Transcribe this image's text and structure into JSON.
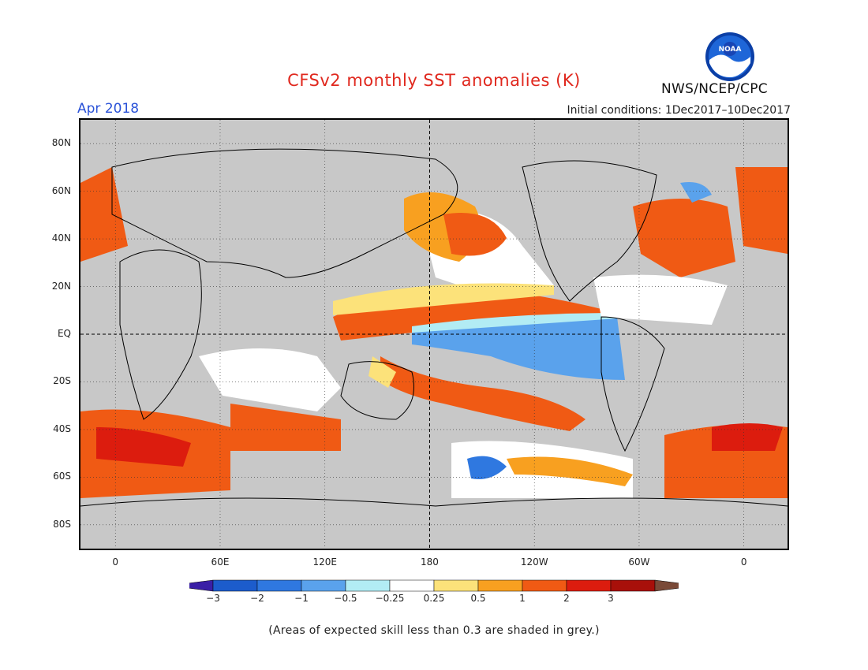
{
  "header": {
    "title": "CFSv2 monthly SST anomalies (K)",
    "month": "Apr 2018",
    "initial_conditions": "Initial conditions: 1Dec2017–10Dec2017",
    "agency": "NWS/NCEP/CPC",
    "logo_text": "NOAA"
  },
  "map": {
    "lat_labels": [
      "80N",
      "60N",
      "40N",
      "20N",
      "EQ",
      "20S",
      "40S",
      "60S",
      "80S"
    ],
    "lat_values": [
      80,
      60,
      40,
      20,
      0,
      -20,
      -40,
      -60,
      -80
    ],
    "lon_labels": [
      "0",
      "60E",
      "120E",
      "180",
      "120W",
      "60W",
      "0"
    ],
    "lon_values": [
      0,
      60,
      120,
      180,
      240,
      300,
      360
    ],
    "lat_range": [
      -90,
      90
    ],
    "lon_range": [
      -20,
      385
    ],
    "grey_color": "#c8c8c8"
  },
  "legend": {
    "ticks": [
      "−3",
      "−2",
      "−1",
      "−0.5",
      "−0.25",
      "0.25",
      "0.5",
      "1",
      "2",
      "3"
    ],
    "colors": [
      "#3a1fa6",
      "#1c5ccc",
      "#2f78e0",
      "#5aa2ec",
      "#b2ecf4",
      "#ffffff",
      "#fce27a",
      "#f8a020",
      "#f05a14",
      "#dc1c0e",
      "#a8100a",
      "#7a4a38"
    ]
  },
  "footnote": "(Areas of expected skill less than 0.3 are shaded in grey.)"
}
